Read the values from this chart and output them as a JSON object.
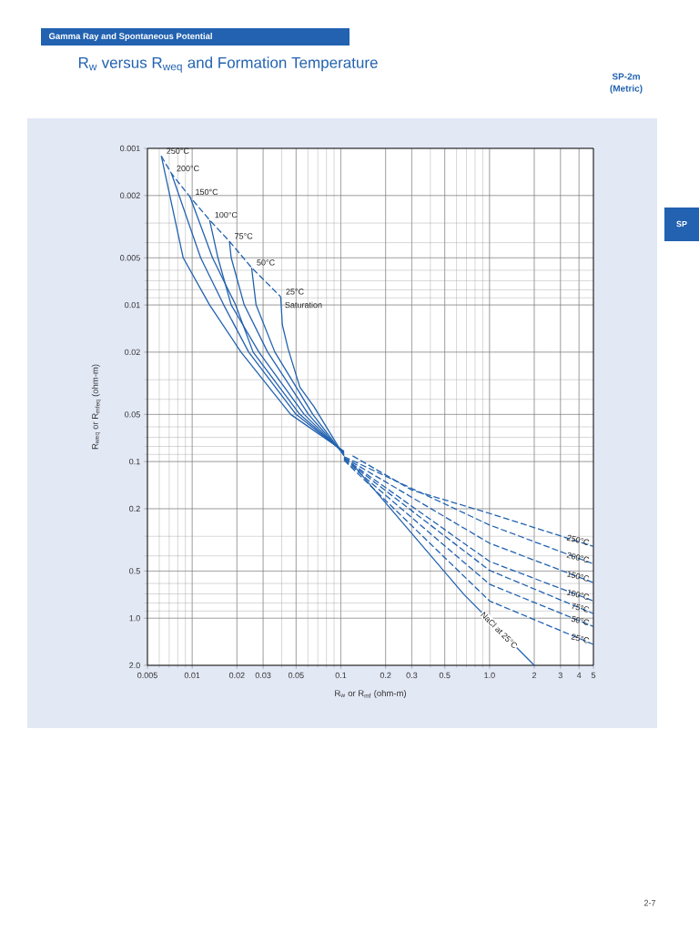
{
  "chart_data": {
    "type": "line",
    "subtitle": "Gamma Ray and Spontaneous Potential",
    "title": "R$_{w}$ versus R$_{weq}$ and Formation Temperature",
    "xlabel": "R$_{w}$ or R$_{mf}$ (ohm-m)",
    "ylabel": "R$_{weq}$ or R$_{mfeq}$ (ohm-m)",
    "annotations": [
      "SP-2m",
      "(Metric)",
      "SP",
      "2-7"
    ],
    "log": "xy",
    "grid": true,
    "xlim": [
      0.005,
      5
    ],
    "ylim": [
      2.0,
      0.001
    ],
    "xticks": [
      0.005,
      0.01,
      0.02,
      0.03,
      0.05,
      0.1,
      0.2,
      0.3,
      0.5,
      {
        "value": 1,
        "label": "1.0"
      },
      2,
      3,
      4,
      5
    ],
    "yticks": [
      0.001,
      0.002,
      0.005,
      0.01,
      0.02,
      0.05,
      0.1,
      0.2,
      0.5,
      {
        "value": 1,
        "label": "1.0"
      },
      {
        "value": 2,
        "label": "2.0"
      }
    ],
    "series": [
      {
        "name": "250°C",
        "color": "#2262b0",
        "line_style": "solid",
        "x": [
          0.0062,
          0.0087,
          0.0131,
          0.0213,
          0.046,
          0.105
        ],
        "values": [
          0.00112,
          0.005,
          0.01,
          0.02,
          0.05,
          0.086
        ]
      },
      {
        "name": "200°C",
        "color": "#2262b0",
        "line_style": "solid",
        "x": [
          0.00726,
          0.0114,
          0.0163,
          0.024,
          0.05,
          0.105
        ],
        "values": [
          0.00145,
          0.005,
          0.01,
          0.02,
          0.05,
          0.087
        ]
      },
      {
        "name": "150°C",
        "color": "#2262b0",
        "line_style": "solid",
        "x": [
          0.0097,
          0.0137,
          0.0196,
          0.0257,
          0.053,
          0.105
        ],
        "values": [
          0.00205,
          0.005,
          0.01,
          0.02,
          0.05,
          0.088
        ]
      },
      {
        "name": "100°C",
        "color": "#2262b0",
        "line_style": "solid",
        "x": [
          0.0131,
          0.0149,
          0.0183,
          0.0281,
          0.0567,
          0.105
        ],
        "values": [
          0.00287,
          0.005,
          0.01,
          0.02,
          0.05,
          0.089
        ]
      },
      {
        "name": "75°C",
        "color": "#2262b0",
        "line_style": "solid",
        "x": [
          0.0178,
          0.0183,
          0.0224,
          0.0322,
          0.0606,
          0.105
        ],
        "values": [
          0.00392,
          0.005,
          0.01,
          0.02,
          0.05,
          0.09
        ]
      },
      {
        "name": "50°C",
        "color": "#2262b0",
        "line_style": "solid",
        "x": [
          0.0251,
          0.0269,
          0.036,
          0.0648,
          0.105
        ],
        "values": [
          0.00578,
          0.01,
          0.02,
          0.05,
          0.091
        ]
      },
      {
        "name": "25°C",
        "color": "#2262b0",
        "line_style": "solid",
        "x": [
          0.0394,
          0.0404,
          0.0442,
          0.053,
          0.066,
          0.105
        ],
        "values": [
          0.00887,
          0.0134,
          0.0191,
          0.0335,
          0.0446,
          0.092
        ]
      },
      {
        "name": "250°C",
        "color": "#2262b0",
        "line_style": "dashed",
        "x": [
          0.12,
          0.3,
          1,
          5
        ],
        "values": [
          0.092,
          0.152,
          0.214,
          0.348
        ]
      },
      {
        "name": "200°C",
        "color": "#2262b0",
        "line_style": "dashed",
        "x": [
          0.105,
          1,
          5
        ],
        "values": [
          0.093,
          0.254,
          0.45
        ]
      },
      {
        "name": "150°C",
        "color": "#2262b0",
        "line_style": "dashed",
        "x": [
          0.105,
          1,
          5
        ],
        "values": [
          0.094,
          0.332,
          0.593
        ]
      },
      {
        "name": "100°C",
        "color": "#2262b0",
        "line_style": "dashed",
        "x": [
          0.105,
          1,
          5
        ],
        "values": [
          0.095,
          0.434,
          0.776
        ]
      },
      {
        "name": "75°C",
        "color": "#2262b0",
        "line_style": "dashed",
        "x": [
          0.105,
          1,
          5
        ],
        "values": [
          0.096,
          0.495,
          0.935
        ]
      },
      {
        "name": "50°C",
        "color": "#2262b0",
        "line_style": "dashed",
        "x": [
          0.105,
          1,
          5
        ],
        "values": [
          0.097,
          0.607,
          1.13
        ]
      },
      {
        "name": "25°C",
        "color": "#2262b0",
        "line_style": "dashed",
        "x": [
          0.105,
          1,
          5
        ],
        "values": [
          0.098,
          0.776,
          1.47
        ]
      },
      {
        "name": "Saturation",
        "color": "#2262b0",
        "line_style": "dashed",
        "x": [
          0.0062,
          0.00726,
          0.0097,
          0.0131,
          0.0178,
          0.0251,
          0.0394
        ],
        "values": [
          0.00112,
          0.00145,
          0.00205,
          0.00287,
          0.00392,
          0.00578,
          0.00887
        ]
      },
      {
        "name": "NaCl at 25°C",
        "color": "#2262b0",
        "line_style": "solid",
        "x": [
          0.12,
          0.675,
          2
        ],
        "values": [
          0.104,
          0.708,
          2.0
        ]
      }
    ]
  }
}
